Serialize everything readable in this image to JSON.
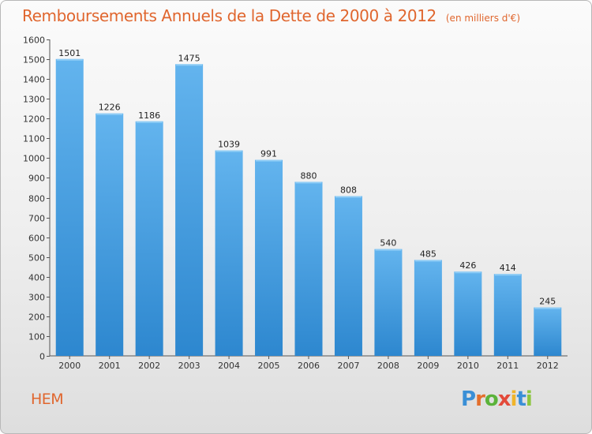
{
  "title": "Remboursements Annuels de la Dette de 2000 à 2012",
  "unit_note": "(en milliers d'€)",
  "place": "HEM",
  "brand": {
    "letters": [
      "P",
      "r",
      "o",
      "x",
      "i",
      "t",
      "i"
    ],
    "colors": [
      "#3a8fd6",
      "#e36f2c",
      "#5bb33a",
      "#e34a3a",
      "#f0b42a",
      "#3a8fd6",
      "#8cc63f"
    ]
  },
  "colors": {
    "bar_top": "#63b4ee",
    "bar_bottom": "#2d87cf",
    "title": "#e0662e"
  },
  "chart_data": {
    "type": "bar",
    "title": "Remboursements Annuels de la Dette de 2000 à 2012",
    "categories": [
      "2000",
      "2001",
      "2002",
      "2003",
      "2004",
      "2005",
      "2006",
      "2007",
      "2008",
      "2009",
      "2010",
      "2011",
      "2012"
    ],
    "values": [
      1501,
      1226,
      1186,
      1475,
      1039,
      991,
      880,
      808,
      540,
      485,
      426,
      414,
      245
    ],
    "ylim": [
      0,
      1600
    ],
    "yticks": [
      0,
      100,
      200,
      300,
      400,
      500,
      600,
      700,
      800,
      900,
      1000,
      1100,
      1200,
      1300,
      1400,
      1500,
      1600
    ],
    "grid": false
  }
}
